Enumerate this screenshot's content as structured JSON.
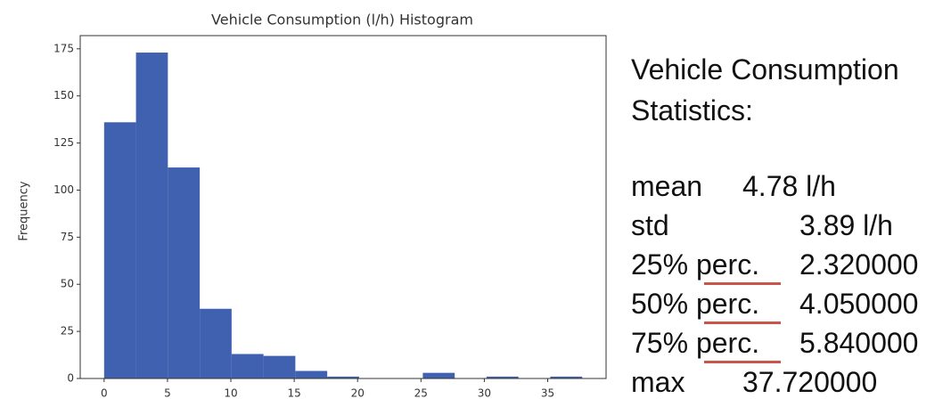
{
  "chart_data": {
    "type": "histogram",
    "title": "Vehicle Consumption (l/h) Histogram",
    "y_label": "Frequency",
    "bins": [
      0,
      2.5147,
      5.0293,
      7.544,
      10.0587,
      12.5733,
      15.088,
      17.6027,
      20.1173,
      22.632,
      25.1467,
      27.6613,
      30.176,
      32.6907,
      35.2053,
      37.72
    ],
    "values": [
      136,
      173,
      112,
      37,
      13,
      12,
      4,
      1,
      0,
      0,
      3,
      0,
      1,
      0,
      1
    ],
    "color": "#4060b0",
    "xlim": [
      -1.886,
      39.606
    ],
    "ylim": [
      0,
      182
    ],
    "xticks": [
      0,
      5,
      10,
      15,
      20,
      25,
      30,
      35
    ],
    "yticks": [
      0,
      25,
      50,
      75,
      100,
      125,
      150,
      175
    ]
  },
  "statistics": {
    "title": "Vehicle Consumption Statistics:",
    "rows": [
      [
        "mean",
        "4.78 l/h"
      ],
      [
        "std",
        "3.89 l/h"
      ],
      [
        "25% perc.",
        "2.320000"
      ],
      [
        "50% perc.",
        "4.050000"
      ],
      [
        "75% perc.",
        "5.840000"
      ],
      [
        "max",
        "37.720000"
      ]
    ]
  }
}
